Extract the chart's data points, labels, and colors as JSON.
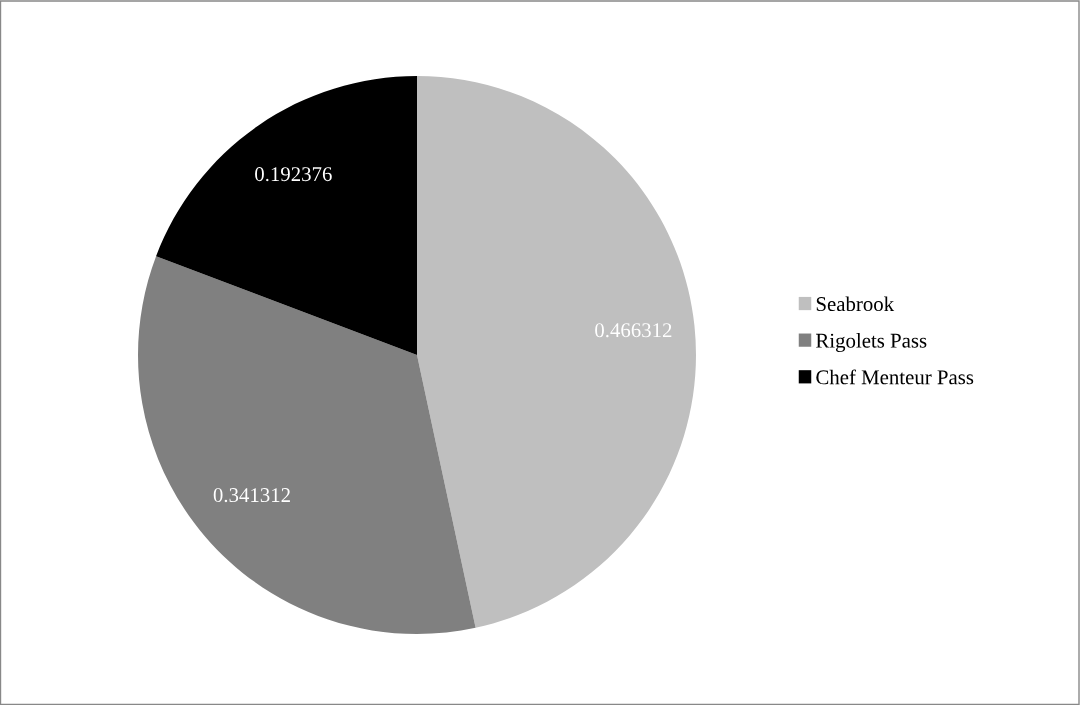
{
  "chart_data": {
    "type": "pie",
    "categories": [
      "Seabrook",
      "Rigolets Pass",
      "Chef Menteur Pass"
    ],
    "values": [
      0.466312,
      0.341312,
      0.192376
    ],
    "colors": [
      "#bfbfbf",
      "#808080",
      "#000000"
    ],
    "data_labels": true,
    "legend": "right"
  }
}
